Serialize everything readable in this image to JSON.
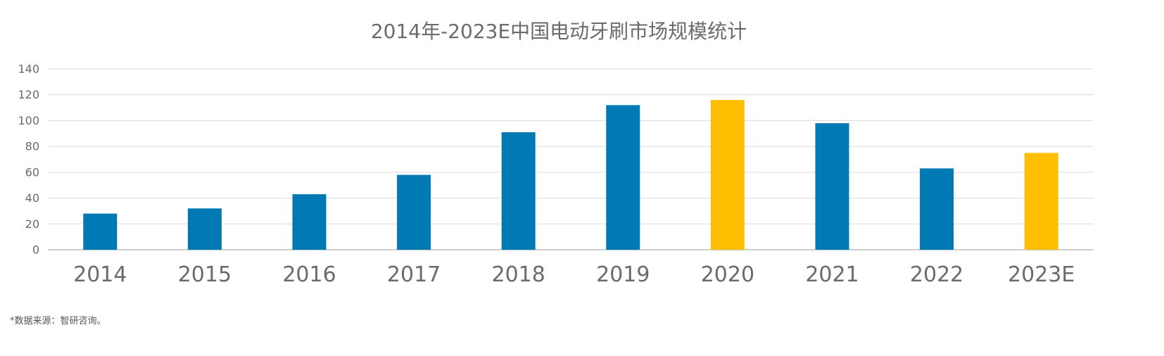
{
  "chart_data": {
    "type": "bar",
    "title": "2014年-2023E中国电动牙刷市场规模统计",
    "categories": [
      "2014",
      "2015",
      "2016",
      "2017",
      "2018",
      "2019",
      "2020",
      "2021",
      "2022",
      "2023E"
    ],
    "values": [
      28,
      32,
      43,
      58,
      91,
      112,
      116,
      98,
      63,
      75
    ],
    "highlighted_categories": [
      "2020",
      "2023E"
    ],
    "ylim": [
      0,
      140
    ],
    "yticks": [
      "0",
      "20",
      "40",
      "60",
      "80",
      "100",
      "120",
      "140"
    ],
    "grid": true,
    "xlabel": "",
    "ylabel": ""
  },
  "colors": {
    "bar": "#0079b5",
    "highlight": "#ffbf00"
  },
  "source_note": "*数据来源：智研咨询。"
}
